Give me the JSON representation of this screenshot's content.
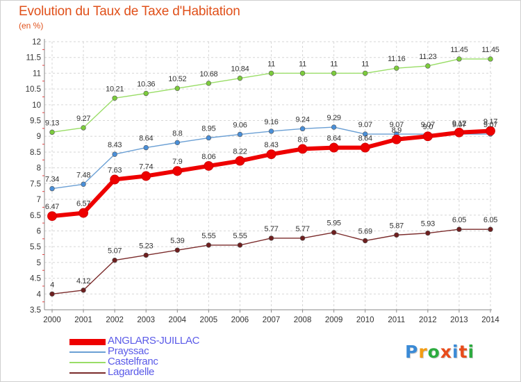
{
  "title": "Evolution du Taux de Taxe d'Habitation",
  "subtitle": "(en %)",
  "logo": {
    "letters": [
      "P",
      "r",
      "o",
      "x",
      "i",
      "t",
      "i"
    ],
    "colors": [
      "#3a8ad6",
      "#f39c12",
      "#2cab3f",
      "#e84c1b",
      "#3a8ad6",
      "#e84c1b",
      "#2cab3f"
    ]
  },
  "chart_data": {
    "type": "line",
    "x": [
      "2000",
      "2001",
      "2002",
      "2003",
      "2004",
      "2005",
      "2006",
      "2007",
      "2008",
      "2009",
      "2010",
      "2011",
      "2012",
      "2013",
      "2014"
    ],
    "ylim": [
      3.5,
      12
    ],
    "yticks": [
      "3.5",
      "4",
      "4.5",
      "5",
      "5.5",
      "6",
      "6.5",
      "7",
      "7.5",
      "8",
      "8.5",
      "9",
      "9.5",
      "10",
      "10.5",
      "11",
      "11.5",
      "12"
    ],
    "grid": true,
    "legend_position": "bottom-left",
    "series": [
      {
        "name": "ANGLARS-JUILLAC",
        "color": "#ee0000",
        "marker_color": "#ee0000",
        "bold": true,
        "values": [
          6.47,
          6.57,
          7.63,
          7.74,
          7.9,
          8.06,
          8.22,
          8.43,
          8.6,
          8.64,
          8.64,
          8.9,
          9.0,
          9.12,
          9.17
        ],
        "labels": [
          "6.47",
          "6.57",
          "7.63",
          "7.74",
          "7.9",
          "8.06",
          "8.22",
          "8.43",
          "8.6",
          "8.64",
          "8.64",
          "8.9",
          "9.0",
          "9.12",
          "9.17"
        ]
      },
      {
        "name": "Prayssac",
        "color": "#6a9fd4",
        "marker_color": "#4a8fd8",
        "bold": false,
        "values": [
          7.34,
          7.48,
          8.43,
          8.64,
          8.8,
          8.95,
          9.06,
          9.16,
          9.24,
          9.29,
          9.07,
          9.07,
          9.07,
          9.07,
          9.07
        ],
        "labels": [
          "7.34",
          "7.48",
          "8.43",
          "8.64",
          "8.8",
          "8.95",
          "9.06",
          "9.16",
          "9.24",
          "9.29",
          "9.07",
          "9.07",
          "9.07",
          "9.07",
          "9.07"
        ]
      },
      {
        "name": "Castelfranc",
        "color": "#99dd66",
        "marker_color": "#7ccc3c",
        "bold": false,
        "values": [
          9.13,
          9.27,
          10.21,
          10.36,
          10.52,
          10.68,
          10.84,
          11,
          11,
          11,
          11,
          11.16,
          11.23,
          11.45,
          11.45
        ],
        "labels": [
          "9.13",
          "9.27",
          "10.21",
          "10.36",
          "10.52",
          "10.68",
          "10.84",
          "11",
          "11",
          "11",
          "11",
          "11.16",
          "11.23",
          "11.45",
          "11.45"
        ]
      },
      {
        "name": "Lagardelle",
        "color": "#7a2a2a",
        "marker_color": "#6e1f1f",
        "bold": false,
        "values": [
          4,
          4.12,
          5.07,
          5.23,
          5.39,
          5.55,
          5.55,
          5.77,
          5.77,
          5.95,
          5.69,
          5.87,
          5.93,
          6.05,
          6.05
        ],
        "labels": [
          "4",
          "4.12",
          "5.07",
          "5.23",
          "5.39",
          "5.55",
          "5.55",
          "5.77",
          "5.77",
          "5.95",
          "5.69",
          "5.87",
          "5.93",
          "6.05",
          "6.05"
        ]
      }
    ]
  }
}
